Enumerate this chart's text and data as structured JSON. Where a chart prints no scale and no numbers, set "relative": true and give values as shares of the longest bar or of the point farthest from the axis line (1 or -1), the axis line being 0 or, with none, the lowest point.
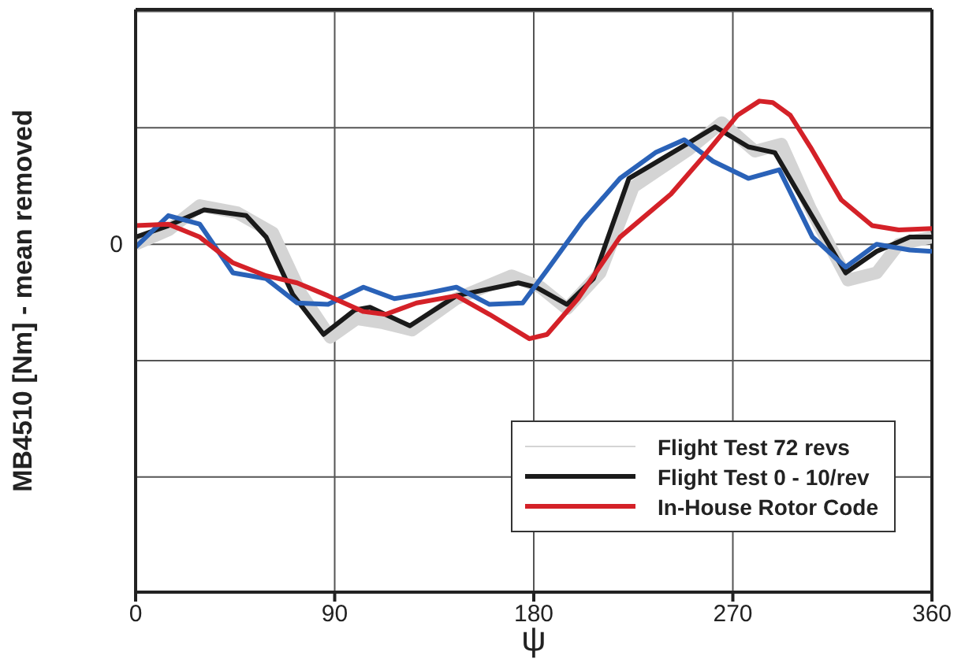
{
  "chart_data": {
    "type": "line",
    "relative": true,
    "xlabel": "ψ",
    "ylabel": "MB4510 [Nm] - mean removed",
    "xlim": [
      0,
      360
    ],
    "xticks": [
      0,
      90,
      180,
      270,
      360
    ],
    "annotations": [
      "0"
    ],
    "grid": true,
    "legend": "bottom right",
    "marker": "none",
    "line_style": "solid",
    "series": [
      {
        "name": "Flight Test 72 revs",
        "color": "#d4d4d4",
        "x": [
          0,
          15,
          29,
          46,
          62,
          75,
          88,
          100,
          112,
          125,
          145,
          170,
          183,
          195,
          210,
          225,
          250,
          265,
          280,
          292,
          305,
          322,
          335,
          345,
          360
        ],
        "values": [
          0.0,
          0.1,
          0.27,
          0.22,
          0.08,
          -0.35,
          -0.65,
          -0.52,
          -0.55,
          -0.6,
          -0.38,
          -0.22,
          -0.3,
          -0.45,
          -0.2,
          0.4,
          0.66,
          0.85,
          0.65,
          0.7,
          0.25,
          -0.25,
          -0.2,
          0.0,
          0.05
        ]
      },
      {
        "name": "Flight Test 0 - 10/rev",
        "color": "#1a1a1a",
        "x": [
          0,
          14.8,
          31,
          50,
          59,
          71,
          85,
          99,
          106,
          124,
          145,
          173,
          181,
          195,
          207,
          223,
          247,
          262,
          277,
          289,
          303,
          321,
          335,
          350,
          360
        ],
        "values": [
          0.05,
          0.13,
          0.24,
          0.2,
          0.05,
          -0.35,
          -0.63,
          -0.46,
          -0.44,
          -0.57,
          -0.36,
          -0.27,
          -0.3,
          -0.42,
          -0.24,
          0.46,
          0.68,
          0.82,
          0.68,
          0.64,
          0.27,
          -0.2,
          -0.05,
          0.05,
          0.05
        ]
      },
      {
        "color": "#2a62b8",
        "x": [
          0,
          14.8,
          29,
          44,
          59,
          73,
          87,
          103,
          117,
          129,
          145,
          160,
          175,
          186,
          202,
          219,
          235,
          248,
          261,
          277,
          291,
          306,
          321,
          335,
          350,
          360
        ],
        "values": [
          -0.02,
          0.2,
          0.14,
          -0.2,
          -0.24,
          -0.41,
          -0.42,
          -0.3,
          -0.38,
          -0.35,
          -0.3,
          -0.42,
          -0.41,
          -0.18,
          0.16,
          0.46,
          0.64,
          0.73,
          0.58,
          0.46,
          0.52,
          0.05,
          -0.16,
          0,
          -0.04,
          -0.05
        ]
      },
      {
        "name": "In-House Rotor Code",
        "color": "#d42128",
        "x": [
          0,
          14.8,
          29,
          44,
          59,
          73,
          87,
          103,
          113,
          127,
          145,
          160,
          178,
          186,
          200,
          219,
          242,
          256,
          272,
          282,
          288,
          296,
          305,
          319,
          333,
          345,
          360
        ],
        "values": [
          0.13,
          0.14,
          0.05,
          -0.13,
          -0.22,
          -0.27,
          -0.36,
          -0.47,
          -0.49,
          -0.41,
          -0.36,
          -0.49,
          -0.66,
          -0.63,
          -0.38,
          0.05,
          0.35,
          0.6,
          0.9,
          1.0,
          0.99,
          0.9,
          0.68,
          0.31,
          0.13,
          0.1,
          0.11
        ]
      }
    ]
  }
}
